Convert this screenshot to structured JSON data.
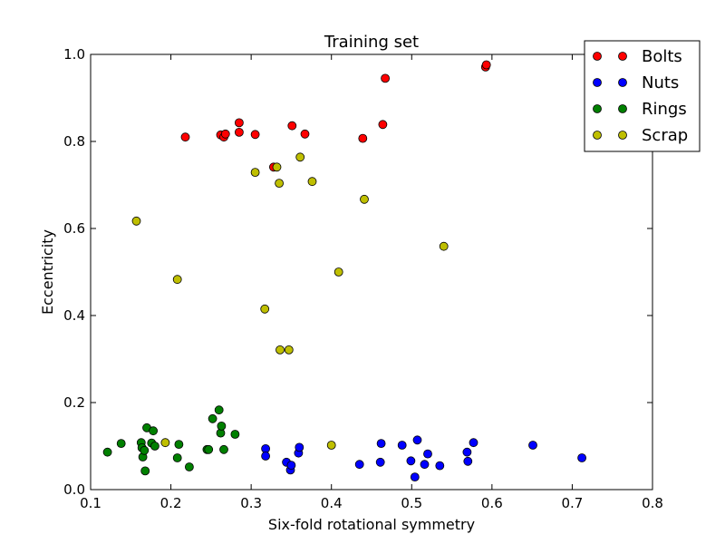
{
  "chart_data": {
    "type": "scatter",
    "title": "Training set",
    "xlabel": "Six-fold rotational symmetry",
    "ylabel": "Eccentricity",
    "xlim": [
      0.1,
      0.8
    ],
    "ylim": [
      0.0,
      1.0
    ],
    "xticks": [
      "0.1",
      "0.2",
      "0.3",
      "0.4",
      "0.5",
      "0.6",
      "0.7",
      "0.8"
    ],
    "yticks": [
      "0.0",
      "0.2",
      "0.4",
      "0.6",
      "0.8",
      "1.0"
    ],
    "grid": false,
    "legend_position": "top-right",
    "series": [
      {
        "name": "Bolts",
        "color": "#ff0000",
        "points": [
          [
            0.218,
            0.81
          ],
          [
            0.262,
            0.815
          ],
          [
            0.266,
            0.81
          ],
          [
            0.268,
            0.817
          ],
          [
            0.285,
            0.843
          ],
          [
            0.285,
            0.821
          ],
          [
            0.305,
            0.816
          ],
          [
            0.328,
            0.741
          ],
          [
            0.351,
            0.836
          ],
          [
            0.367,
            0.817
          ],
          [
            0.439,
            0.807
          ],
          [
            0.464,
            0.839
          ],
          [
            0.467,
            0.945
          ],
          [
            0.592,
            0.971
          ],
          [
            0.593,
            0.976
          ]
        ]
      },
      {
        "name": "Nuts",
        "color": "#0000ff",
        "points": [
          [
            0.318,
            0.094
          ],
          [
            0.318,
            0.077
          ],
          [
            0.344,
            0.063
          ],
          [
            0.349,
            0.045
          ],
          [
            0.35,
            0.056
          ],
          [
            0.359,
            0.084
          ],
          [
            0.36,
            0.097
          ],
          [
            0.435,
            0.058
          ],
          [
            0.461,
            0.063
          ],
          [
            0.462,
            0.106
          ],
          [
            0.488,
            0.102
          ],
          [
            0.499,
            0.066
          ],
          [
            0.504,
            0.029
          ],
          [
            0.507,
            0.114
          ],
          [
            0.516,
            0.058
          ],
          [
            0.52,
            0.082
          ],
          [
            0.535,
            0.055
          ],
          [
            0.569,
            0.086
          ],
          [
            0.57,
            0.065
          ],
          [
            0.577,
            0.108
          ],
          [
            0.651,
            0.102
          ],
          [
            0.712,
            0.073
          ]
        ]
      },
      {
        "name": "Rings",
        "color": "#008000",
        "points": [
          [
            0.121,
            0.086
          ],
          [
            0.138,
            0.106
          ],
          [
            0.163,
            0.108
          ],
          [
            0.164,
            0.096
          ],
          [
            0.165,
            0.075
          ],
          [
            0.167,
            0.09
          ],
          [
            0.168,
            0.043
          ],
          [
            0.17,
            0.142
          ],
          [
            0.176,
            0.107
          ],
          [
            0.178,
            0.135
          ],
          [
            0.18,
            0.1
          ],
          [
            0.208,
            0.073
          ],
          [
            0.21,
            0.104
          ],
          [
            0.223,
            0.052
          ],
          [
            0.245,
            0.092
          ],
          [
            0.247,
            0.092
          ],
          [
            0.252,
            0.163
          ],
          [
            0.26,
            0.183
          ],
          [
            0.262,
            0.13
          ],
          [
            0.263,
            0.146
          ],
          [
            0.266,
            0.092
          ],
          [
            0.28,
            0.127
          ]
        ]
      },
      {
        "name": "Scrap",
        "color": "#bfbf00",
        "points": [
          [
            0.157,
            0.617
          ],
          [
            0.193,
            0.108
          ],
          [
            0.208,
            0.483
          ],
          [
            0.305,
            0.729
          ],
          [
            0.317,
            0.415
          ],
          [
            0.332,
            0.741
          ],
          [
            0.335,
            0.704
          ],
          [
            0.336,
            0.321
          ],
          [
            0.347,
            0.321
          ],
          [
            0.361,
            0.764
          ],
          [
            0.376,
            0.708
          ],
          [
            0.4,
            0.102
          ],
          [
            0.409,
            0.5
          ],
          [
            0.441,
            0.667
          ],
          [
            0.54,
            0.559
          ]
        ]
      }
    ]
  }
}
